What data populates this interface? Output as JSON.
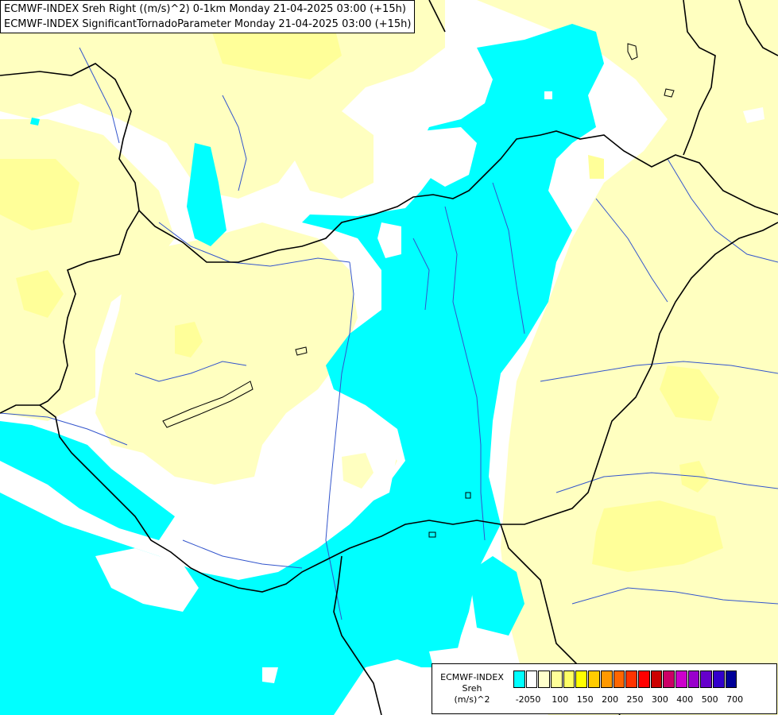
{
  "title_lines": [
    "ECMWF-INDEX Sreh Right ((m/s)^2) 0-1km Monday 21-04-2025 03:00 (+15h)",
    "ECMWF-INDEX SignificantTornadoParameter Monday 21-04-2025 03:00 (+15h)"
  ],
  "legend": {
    "title_lines": [
      "ECMWF-INDEX",
      "Sreh",
      "(m/s)^2"
    ],
    "colors": [
      "#00ffff",
      "#ffffff",
      "#ffffcc",
      "#ffff99",
      "#ffff66",
      "#ffff00",
      "#ffcc00",
      "#ff9900",
      "#ff6600",
      "#ff3300",
      "#ff0000",
      "#cc0000",
      "#cc0066",
      "#cc00cc",
      "#9900cc",
      "#6600cc",
      "#3300cc",
      "#000099"
    ],
    "tick_labels": [
      "-20",
      "50",
      "100",
      "150",
      "200",
      "250",
      "300",
      "400",
      "500",
      "700"
    ]
  },
  "colors": {
    "cyan": "#00ffff",
    "pale_yellow": "#ffffc0",
    "light_yellow": "#ffff99",
    "border": "#000000",
    "river": "#2244cc"
  }
}
